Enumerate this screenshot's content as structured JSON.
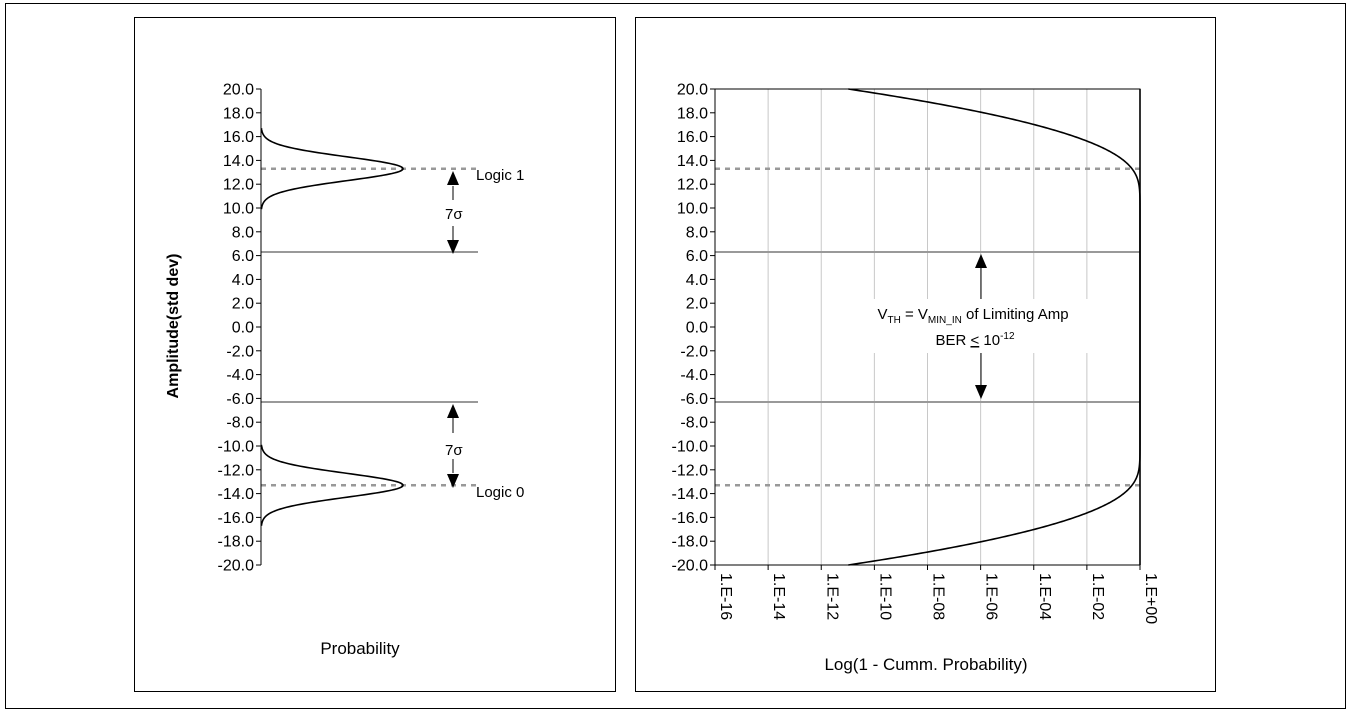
{
  "chart_data": [
    {
      "type": "line",
      "title": "",
      "xlabel": "Probability",
      "ylabel": "Amplitude(std dev)",
      "ylim": [
        -20,
        20
      ],
      "yticks": [
        "20.0",
        "18.0",
        "16.0",
        "14.0",
        "12.0",
        "10.0",
        "8.0",
        "6.0",
        "4.0",
        "2.0",
        "0.0",
        "-2.0",
        "-4.0",
        "-6.0",
        "-8.0",
        "-10.0",
        "-12.0",
        "-14.0",
        "-16.0",
        "-18.0",
        "-20.0"
      ],
      "series": [
        {
          "mean": 13.3,
          "std": 1.0
        },
        {
          "mean": -13.3,
          "std": 1.0
        }
      ],
      "reference_lines": [
        {
          "y": 13.3,
          "style": "dashed"
        },
        {
          "y": -13.3,
          "style": "dashed"
        },
        {
          "y": 6.3,
          "style": "solid"
        },
        {
          "y": -6.3,
          "style": "solid"
        }
      ],
      "annotations": [
        {
          "text": "Logic 1"
        },
        {
          "text": "Logic 0"
        },
        {
          "text": "7σ"
        },
        {
          "text": "7σ"
        }
      ],
      "grid": false
    },
    {
      "type": "line",
      "title": "",
      "xlabel": "Log(1 - Cumm. Probability)",
      "x_scale": "log",
      "xlim": [
        1e-16,
        1
      ],
      "ylim": [
        -20,
        20
      ],
      "xticks": [
        "1.E-16",
        "1.E-14",
        "1.E-12",
        "1.E-10",
        "1.E-08",
        "1.E-06",
        "1.E-04",
        "1.E-02",
        "1.E+00"
      ],
      "yticks": [
        "20.0",
        "18.0",
        "16.0",
        "14.0",
        "12.0",
        "10.0",
        "8.0",
        "6.0",
        "4.0",
        "2.0",
        "0.0",
        "-2.0",
        "-4.0",
        "-6.0",
        "-8.0",
        "-10.0",
        "-12.0",
        "-14.0",
        "-16.0",
        "-18.0",
        "-20.0"
      ],
      "series": [
        {
          "mean": 13.3,
          "std": 1.0,
          "branch": "upper"
        },
        {
          "mean": -13.3,
          "std": 1.0,
          "branch": "lower"
        }
      ],
      "reference_lines": [
        {
          "y": 13.3,
          "style": "dashed"
        },
        {
          "y": -13.3,
          "style": "dashed"
        },
        {
          "y": 6.3,
          "style": "solid"
        },
        {
          "y": -6.3,
          "style": "solid"
        }
      ],
      "annotations": {
        "vth_lead": "V",
        "vth_sub": "TH",
        "equals": " = V",
        "vmin_sub": "MIN_IN",
        "vth_tail": " of Limiting Amp",
        "ber_lead": "BER ",
        "ber_le": "<",
        "ber_base": " 10",
        "ber_exp": "-12"
      },
      "grid": "vertical"
    }
  ]
}
